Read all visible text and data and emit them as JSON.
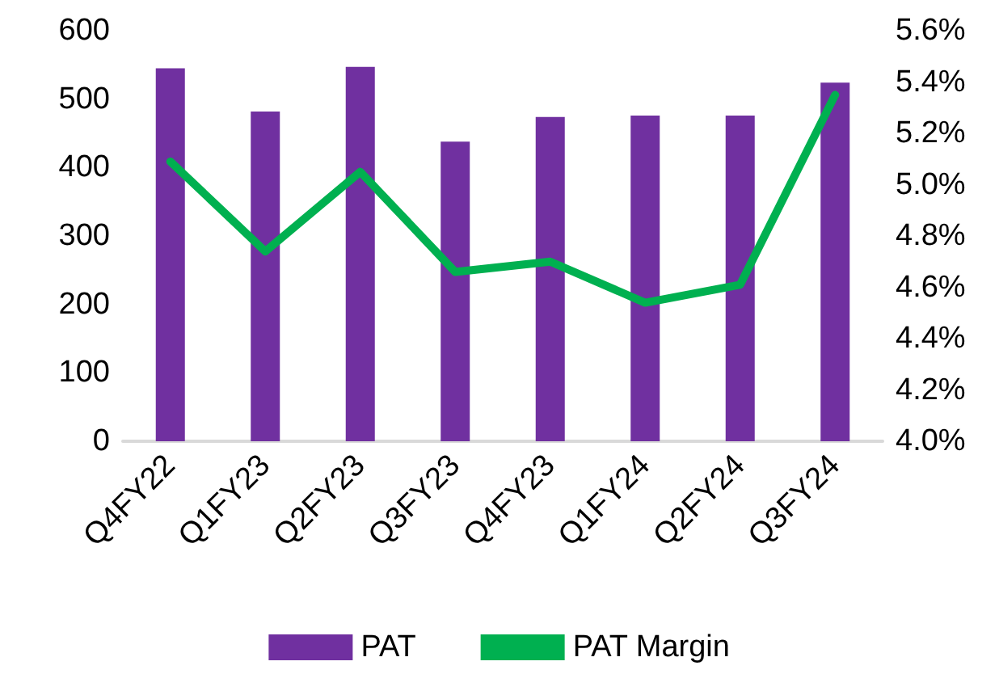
{
  "chart_data": {
    "type": "bar",
    "categories": [
      "Q4FY22",
      "Q1FY23",
      "Q2FY23",
      "Q3FY23",
      "Q4FY23",
      "Q1FY24",
      "Q2FY24",
      "Q3FY24"
    ],
    "series": [
      {
        "name": "PAT",
        "color": "#7030a0",
        "values": [
          545,
          482,
          547,
          438,
          474,
          476,
          476,
          524
        ]
      },
      {
        "name": "PAT Margin",
        "type": "line",
        "axis": "y2",
        "color": "#00b050",
        "values": [
          5.09,
          4.74,
          5.05,
          4.66,
          4.7,
          4.54,
          4.61,
          5.35
        ]
      }
    ],
    "ylim": [
      0,
      600
    ],
    "yticks": [
      0,
      100,
      200,
      300,
      400,
      500,
      600
    ],
    "y2lim": [
      4.0,
      5.6
    ],
    "y2ticks": [
      {
        "value": 4.0,
        "label": "4.0%"
      },
      {
        "value": 4.2,
        "label": "4.2%"
      },
      {
        "value": 4.4,
        "label": "4.4%"
      },
      {
        "value": 4.6,
        "label": "4.6%"
      },
      {
        "value": 4.8,
        "label": "4.8%"
      },
      {
        "value": 5.0,
        "label": "5.0%"
      },
      {
        "value": 5.2,
        "label": "5.2%"
      },
      {
        "value": 5.4,
        "label": "5.4%"
      },
      {
        "value": 5.6,
        "label": "5.6%"
      }
    ],
    "grid": false,
    "legend": "bottom",
    "marker": "none",
    "line_style": "solid"
  }
}
